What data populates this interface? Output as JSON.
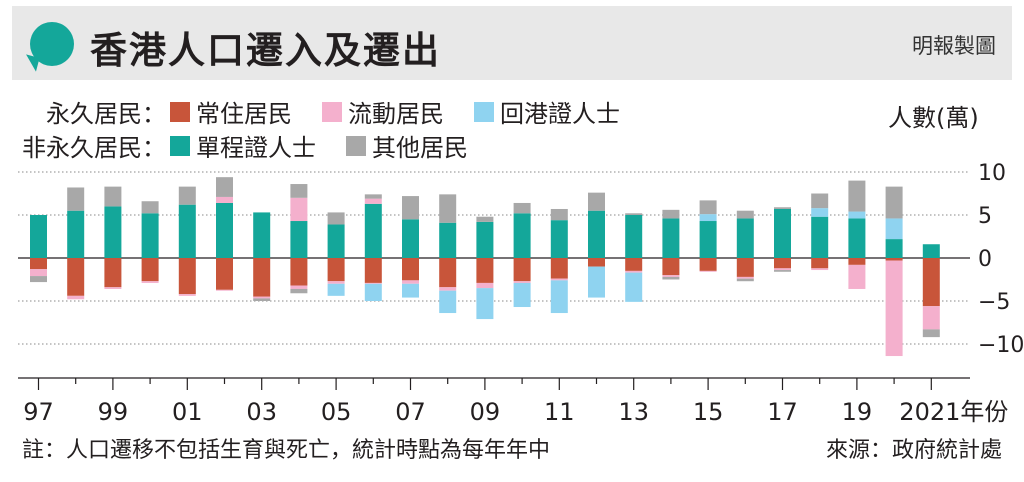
{
  "header": {
    "title": "香港人口遷入及遷出",
    "credit": "明報製圖"
  },
  "legend": {
    "permanent_label": "永久居民：",
    "non_permanent_label": "非永久居民：",
    "items": [
      {
        "name": "常住居民",
        "color": "#c8553a"
      },
      {
        "name": "流動居民",
        "color": "#f4b0cd"
      },
      {
        "name": "回港證人士",
        "color": "#8fd3f0"
      },
      {
        "name": "單程證人士",
        "color": "#14a79a"
      },
      {
        "name": "其他居民",
        "color": "#a8a8a8"
      }
    ]
  },
  "unit_label": "人數(萬)",
  "footnote": "註：人口遷移不包括生育與死亡，統計時點為每年年中",
  "source": "來源：政府統計處",
  "chart_data": {
    "type": "bar",
    "stacked": true,
    "x": [
      1997,
      1998,
      1999,
      2000,
      2001,
      2002,
      2003,
      2004,
      2005,
      2006,
      2007,
      2008,
      2009,
      2010,
      2011,
      2012,
      2013,
      2014,
      2015,
      2016,
      2017,
      2018,
      2019,
      2020,
      2021
    ],
    "x_tick_labels": [
      "97",
      "99",
      "01",
      "03",
      "05",
      "07",
      "09",
      "11",
      "13",
      "15",
      "17",
      "19",
      "2021年份"
    ],
    "x_tick_years": [
      1997,
      1999,
      2001,
      2003,
      2005,
      2007,
      2009,
      2011,
      2013,
      2015,
      2017,
      2019,
      2021
    ],
    "y_ticks": [
      10,
      5,
      0,
      -5,
      -10
    ],
    "y_tick_labels": [
      "10",
      "5",
      "0",
      "−5",
      "−10"
    ],
    "ylim": [
      -13,
      13
    ],
    "ylabel": "人數(萬)",
    "grid": true,
    "series": [
      {
        "name": "單程證人士",
        "color": "#14a79a",
        "values": [
          5.0,
          5.5,
          6.0,
          5.2,
          6.2,
          6.4,
          5.3,
          4.3,
          3.9,
          6.3,
          4.5,
          4.1,
          4.2,
          5.2,
          4.4,
          5.5,
          5.0,
          4.6,
          4.3,
          4.6,
          5.7,
          4.8,
          4.6,
          2.2,
          1.6
        ]
      },
      {
        "name": "流動居民",
        "color": "#f4b0cd",
        "values": [
          0,
          0,
          0,
          0,
          0,
          0.7,
          0,
          2.7,
          0,
          0.6,
          0,
          0,
          0,
          0,
          0,
          0,
          0,
          0,
          0,
          0,
          0,
          0,
          0,
          0,
          0
        ]
      },
      {
        "name": "回港證人士",
        "color": "#8fd3f0",
        "values": [
          0,
          0,
          0,
          0,
          0,
          0,
          0,
          0,
          0,
          0,
          0,
          0,
          0,
          0,
          0,
          0,
          0,
          0,
          0.8,
          0,
          0,
          1.0,
          0.8,
          2.4,
          0
        ]
      },
      {
        "name": "其他居民",
        "color": "#a8a8a8",
        "values": [
          0,
          2.7,
          2.3,
          1.4,
          2.1,
          2.3,
          0,
          1.6,
          1.4,
          0.5,
          2.7,
          3.3,
          0.6,
          1.2,
          1.3,
          2.1,
          0.2,
          1.0,
          1.6,
          0.9,
          0.2,
          1.7,
          3.6,
          3.7,
          0
        ]
      },
      {
        "name": "常住居民",
        "color": "#c8553a",
        "values": [
          -1.3,
          -4.4,
          -3.4,
          -2.7,
          -4.2,
          -3.7,
          -4.5,
          -3.2,
          -2.7,
          -2.9,
          -2.6,
          -3.4,
          -2.9,
          -2.7,
          -2.4,
          -1.0,
          -1.5,
          -2.0,
          -1.5,
          -2.2,
          -1.2,
          -1.2,
          -0.8,
          -0.3,
          -5.6
        ]
      },
      {
        "name": "流動居民",
        "color": "#f4b0cd",
        "values": [
          -0.8,
          -0.4,
          -0.2,
          -0.2,
          -0.2,
          -0.1,
          -0.2,
          -0.4,
          -0.3,
          -0.1,
          -0.4,
          -0.4,
          -0.6,
          -0.2,
          -0.2,
          0,
          -0.2,
          -0.2,
          -0.1,
          -0.2,
          -0.2,
          -0.2,
          -2.8,
          -11.1,
          -2.7
        ]
      },
      {
        "name": "回港證人士",
        "color": "#8fd3f0",
        "values": [
          0,
          0,
          0,
          0,
          0,
          0,
          0,
          0,
          -1.4,
          -2.0,
          -1.6,
          -2.6,
          -3.6,
          -2.8,
          -3.8,
          -3.6,
          -3.4,
          0,
          0,
          0,
          0,
          0,
          0,
          0,
          0
        ]
      },
      {
        "name": "其他居民",
        "color": "#a8a8a8",
        "values": [
          -0.7,
          0,
          0,
          0,
          0,
          0,
          -0.3,
          -0.5,
          0,
          0,
          0,
          0,
          0,
          0,
          0,
          0,
          0,
          -0.3,
          0,
          -0.3,
          -0.2,
          0,
          0,
          0,
          -0.9
        ]
      }
    ]
  }
}
